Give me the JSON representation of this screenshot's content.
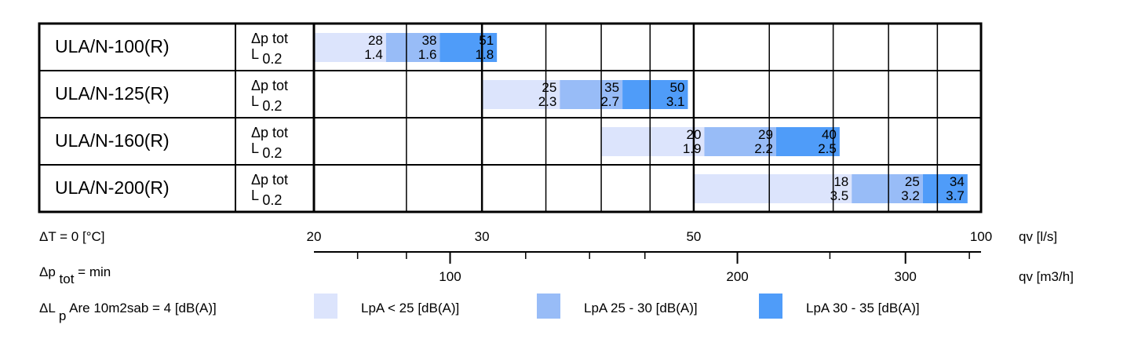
{
  "chart_data": {
    "type": "bar",
    "x_scale": "log",
    "x_axis": {
      "primary": {
        "unit_label": "qv [l/s]",
        "ticks": [
          20,
          30,
          50,
          100
        ],
        "range": [
          20,
          100
        ]
      },
      "secondary": {
        "unit_label": "qv [m3/h]",
        "tick_labels": [
          100,
          200,
          300
        ]
      }
    },
    "row_param_labels": {
      "line1_sym": "Δp",
      "line1_sub": "tot",
      "line2_sym": "L",
      "line2_sub": "0.2"
    },
    "colors": {
      "low": "#dce4fc",
      "mid": "#98bcf7",
      "high": "#4f9cf9"
    },
    "rows": [
      {
        "model": "ULA/N-100(R)",
        "segments": [
          {
            "class": "low",
            "qv_start": 20.0,
            "qv_end": 23.8,
            "dp_tot": "28",
            "l02": "1.4"
          },
          {
            "class": "mid",
            "qv_start": 23.8,
            "qv_end": 27.1,
            "dp_tot": "38",
            "l02": "1.6"
          },
          {
            "class": "high",
            "qv_start": 27.1,
            "qv_end": 31.1,
            "dp_tot": "51",
            "l02": "1.8"
          }
        ]
      },
      {
        "model": "ULA/N-125(R)",
        "segments": [
          {
            "class": "low",
            "qv_start": 30.0,
            "qv_end": 36.2,
            "dp_tot": "25",
            "l02": "2.3"
          },
          {
            "class": "mid",
            "qv_start": 36.2,
            "qv_end": 42.1,
            "dp_tot": "35",
            "l02": "2.7"
          },
          {
            "class": "high",
            "qv_start": 42.1,
            "qv_end": 49.3,
            "dp_tot": "50",
            "l02": "3.1"
          }
        ]
      },
      {
        "model": "ULA/N-160(R)",
        "segments": [
          {
            "class": "low",
            "qv_start": 40.0,
            "qv_end": 51.3,
            "dp_tot": "20",
            "l02": "1.9"
          },
          {
            "class": "mid",
            "qv_start": 51.3,
            "qv_end": 61.0,
            "dp_tot": "29",
            "l02": "2.2"
          },
          {
            "class": "high",
            "qv_start": 61.0,
            "qv_end": 71.1,
            "dp_tot": "40",
            "l02": "2.5"
          }
        ]
      },
      {
        "model": "ULA/N-200(R)",
        "segments": [
          {
            "class": "low",
            "qv_start": 50.0,
            "qv_end": 73.2,
            "dp_tot": "18",
            "l02": "3.5"
          },
          {
            "class": "mid",
            "qv_start": 73.2,
            "qv_end": 86.9,
            "dp_tot": "25",
            "l02": "3.2"
          },
          {
            "class": "high",
            "qv_start": 86.9,
            "qv_end": 96.8,
            "dp_tot": "34",
            "l02": "3.7"
          }
        ]
      }
    ]
  },
  "footer": {
    "delta_t": "ΔT = 0 [°C]",
    "dp_sym": "Δp",
    "dp_sub": "tot",
    "dp_rest": "= min",
    "dl_sym": "ΔL",
    "dl_sub": "p",
    "dl_rest": "Are 10m2sab = 4 [dB(A)]"
  },
  "legend": [
    {
      "class": "low",
      "label": "LpA < 25 [dB(A)]"
    },
    {
      "class": "mid",
      "label": "LpA 25 - 30 [dB(A)]"
    },
    {
      "class": "high",
      "label": "LpA 30 - 35 [dB(A)]"
    }
  ]
}
